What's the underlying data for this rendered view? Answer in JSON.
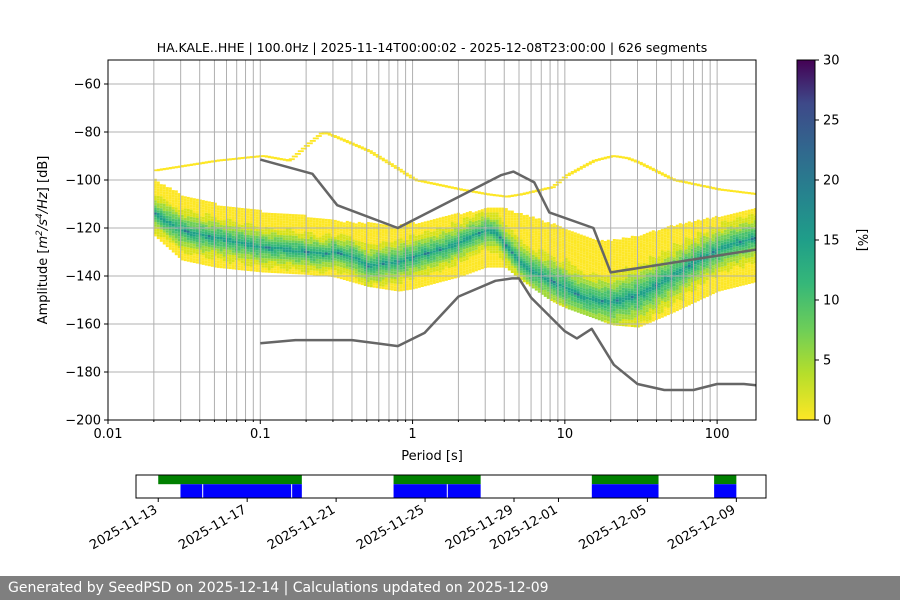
{
  "chart_data": {
    "type": "heatmap",
    "title": "HA.KALE..HHE | 100.0Hz | 2025-11-14T00:00:02 - 2025-12-08T23:00:00 | 626 segments",
    "xlabel": "Period [s]",
    "ylabel_parts": [
      "Amplitude [",
      "m",
      "2",
      "/",
      "s",
      "4",
      "/",
      "Hz",
      "] [dB]"
    ],
    "x_scale": "log",
    "xlim": [
      0.01,
      180
    ],
    "ylim": [
      -200,
      -50
    ],
    "x_ticks": [
      0.01,
      0.1,
      1,
      10,
      100
    ],
    "x_tick_labels": [
      "0.01",
      "0.1",
      "1",
      "10",
      "100"
    ],
    "y_ticks": [
      -200,
      -180,
      -160,
      -140,
      -120,
      -100,
      -80,
      -60
    ],
    "y_tick_labels": [
      "−200",
      "−180",
      "−160",
      "−140",
      "−120",
      "−100",
      "−80",
      "−60"
    ],
    "grid": true,
    "colorbar": {
      "label": "[%]",
      "range": [
        0,
        30
      ],
      "ticks": [
        0,
        5,
        10,
        15,
        20,
        25,
        30
      ],
      "tick_labels": [
        "0",
        "5",
        "10",
        "15",
        "20",
        "25",
        "30"
      ],
      "colormap": "viridis"
    },
    "mode_curve": {
      "x": [
        0.02,
        0.025,
        0.03,
        0.04,
        0.05,
        0.07,
        0.1,
        0.15,
        0.2,
        0.25,
        0.3,
        0.4,
        0.5,
        0.6,
        0.8,
        1,
        1.5,
        2,
        2.5,
        3,
        3.5,
        4,
        5,
        6,
        8,
        10,
        12,
        15,
        20,
        30,
        50,
        80,
        120,
        180
      ],
      "y": [
        -114,
        -118,
        -121,
        -123,
        -124,
        -126,
        -128,
        -129,
        -130,
        -131,
        -130,
        -132,
        -136,
        -135,
        -134,
        -132,
        -129,
        -126,
        -123,
        -121,
        -122,
        -127,
        -134,
        -138,
        -142,
        -145,
        -148,
        -150,
        -151,
        -148,
        -140,
        -132,
        -127,
        -124
      ]
    },
    "spread_upper": {
      "x": [
        0.02,
        0.03,
        0.05,
        0.1,
        0.2,
        0.3,
        0.5,
        0.8,
        1,
        2,
        3,
        4,
        5,
        8,
        10,
        15,
        20,
        30,
        50,
        100,
        180
      ],
      "y": [
        -100,
        -106,
        -110,
        -113,
        -115,
        -117,
        -118,
        -119,
        -118,
        -114,
        -112,
        -112,
        -114,
        -118,
        -120,
        -125,
        -125,
        -123,
        -119,
        -115,
        -112
      ]
    },
    "spread_lower": {
      "x": [
        0.02,
        0.03,
        0.05,
        0.1,
        0.2,
        0.3,
        0.5,
        0.8,
        1,
        2,
        3,
        4,
        5,
        8,
        10,
        15,
        20,
        30,
        50,
        100,
        180
      ],
      "y": [
        -123,
        -133,
        -136,
        -138,
        -139,
        -140,
        -144,
        -146,
        -145,
        -140,
        -136,
        -136,
        -141,
        -150,
        -153,
        -157,
        -160,
        -161,
        -155,
        -146,
        -142
      ]
    },
    "sparse_upper": {
      "x": [
        0.02,
        0.05,
        0.1,
        0.15,
        0.2,
        0.25,
        0.3,
        0.5,
        0.8,
        1,
        2,
        3,
        4,
        5,
        8,
        10,
        15,
        20,
        25,
        30,
        50,
        100,
        180
      ],
      "y": [
        -96,
        -92,
        -90,
        -92,
        -85,
        -80,
        -82,
        -88,
        -96,
        -100,
        -104,
        -106,
        -107,
        -106,
        -103,
        -98,
        -92,
        -90,
        -91,
        -93,
        -100,
        -104,
        -106
      ]
    },
    "nlnm": {
      "x": [
        0.1,
        0.17,
        0.3,
        0.4,
        0.8,
        1.2,
        2,
        3.5,
        4.5,
        5,
        6,
        10,
        12,
        15,
        21,
        30,
        45,
        70,
        100,
        150,
        180
      ],
      "y": [
        -168,
        -166.7,
        -166.7,
        -166.7,
        -169.2,
        -163.7,
        -148.6,
        -142,
        -141,
        -141,
        -149,
        -163,
        -166,
        -162,
        -177,
        -185,
        -187.5,
        -187.5,
        -185,
        -185,
        -185.5
      ]
    },
    "nhnm": {
      "x": [
        0.1,
        0.22,
        0.32,
        0.8,
        3.8,
        4.6,
        6.3,
        7.9,
        15.4,
        20,
        180
      ],
      "y": [
        -91.5,
        -97.4,
        -110.5,
        -120,
        -98,
        -96.5,
        -101,
        -113.5,
        -120,
        -138.5,
        -129
      ]
    },
    "availability": {
      "date_ticks": [
        "2025-11-13",
        "2025-11-17",
        "2025-11-21",
        "2025-11-25",
        "2025-11-29",
        "2025-12-01",
        "2025-12-05",
        "2025-12-09"
      ],
      "date_range": [
        "2025-11-12T00:00",
        "2025-12-10T08:00"
      ],
      "green_segments": [
        [
          "2025-11-13T00:00",
          "2025-11-19T11:00"
        ],
        [
          "2025-11-23T14:00",
          "2025-11-27T12:00"
        ],
        [
          "2025-12-02T12:00",
          "2025-12-05T12:00"
        ],
        [
          "2025-12-08T00:00",
          "2025-12-09T00:00"
        ]
      ],
      "blue_segments": [
        [
          "2025-11-14T00:00",
          "2025-11-19T11:00"
        ],
        [
          "2025-11-23T14:00",
          "2025-11-27T12:00"
        ],
        [
          "2025-12-02T12:00",
          "2025-12-05T12:00"
        ],
        [
          "2025-12-08T00:00",
          "2025-12-09T00:00"
        ]
      ],
      "gap_marks": [
        "2025-11-15T00:00",
        "2025-11-19T00:00",
        "2025-11-26T00:00"
      ]
    },
    "colors": {
      "noise_model": "#666666",
      "grid": "#b0b0b0",
      "avail_green": "#008000",
      "avail_blue": "#0000ff"
    }
  },
  "footer": {
    "text": "Generated by SeedPSD on 2025-12-14 | Calculations updated on 2025-12-09"
  }
}
